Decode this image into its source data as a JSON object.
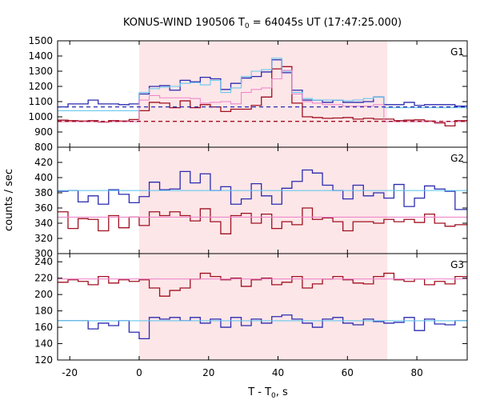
{
  "chart_data": {
    "type": "line",
    "title_parts": {
      "prefix": "KONUS-WIND 190506 T",
      "sub": "0",
      "suffix": " = 64045s UT (17:47:25.000)"
    },
    "xlabel_parts": {
      "prefix": "T - T",
      "sub": "0",
      "suffix": ", s"
    },
    "ylabel": "counts / sec",
    "xlim": [
      -23.5,
      94.5
    ],
    "xticks": [
      -20,
      0,
      20,
      40,
      60,
      80
    ],
    "shaded_interval": [
      0,
      71.5
    ],
    "colors": {
      "shade": "#fde6e8",
      "dark_blue": "#2b2bb0",
      "dark_red": "#a01020",
      "light_blue": "#66c8ee",
      "pink": "#ee88cc"
    },
    "bin_edges": [
      -23.5,
      -20.5,
      -17.6,
      -14.7,
      -11.8,
      -8.8,
      -5.9,
      -2.9,
      0,
      2.9,
      5.9,
      8.8,
      11.8,
      14.7,
      17.6,
      20.5,
      23.5,
      26.4,
      29.4,
      32.3,
      35.2,
      38.2,
      41.1,
      44.0,
      47.0,
      49.9,
      52.8,
      55.8,
      58.7,
      61.6,
      64.6,
      67.5,
      70.5,
      73.4,
      76.3,
      79.3,
      82.2,
      85.1,
      88.1,
      91.0,
      94.5
    ],
    "panels": [
      {
        "label": "G1",
        "ylim": [
          800,
          1500
        ],
        "yticks": [
          800,
          900,
          1000,
          1100,
          1200,
          1300,
          1400,
          1500
        ],
        "series": [
          {
            "color": "dark_blue",
            "values": [
              1065,
              1085,
              1085,
              1110,
              1085,
              1085,
              1080,
              1085,
              1150,
              1200,
              1205,
              1175,
              1240,
              1230,
              1260,
              1250,
              1180,
              1220,
              1255,
              1265,
              1295,
              1375,
              1290,
              1175,
              1110,
              1110,
              1095,
              1110,
              1095,
              1095,
              1100,
              1130,
              1080,
              1080,
              1095,
              1075,
              1080,
              1080,
              1080,
              1070
            ]
          },
          {
            "color": "dark_red",
            "values": [
              978,
              975,
              972,
              975,
              965,
              975,
              972,
              982,
              1040,
              1095,
              1090,
              1060,
              1105,
              1060,
              1080,
              1065,
              1035,
              1050,
              1050,
              1075,
              1130,
              1315,
              1330,
              1090,
              1000,
              995,
              990,
              992,
              995,
              985,
              990,
              985,
              985,
              975,
              978,
              980,
              972,
              960,
              940,
              975
            ]
          },
          {
            "color": "light_blue",
            "stepped": true,
            "values": [
              1040,
              1040,
              1040,
              1040,
              1040,
              1040,
              1040,
              1040,
              1160,
              1185,
              1195,
              1200,
              1220,
              1225,
              1210,
              1240,
              1160,
              1190,
              1265,
              1300,
              1310,
              1385,
              1300,
              1160,
              1120,
              1110,
              1110,
              1110,
              1105,
              1110,
              1120,
              1130,
              1060,
              1060,
              1060,
              1060,
              1060,
              1060,
              1060,
              1060
            ]
          },
          {
            "color": "pink",
            "stepped": true,
            "values": [
              968,
              968,
              968,
              968,
              968,
              968,
              968,
              968,
              1110,
              1140,
              1125,
              1125,
              1125,
              1120,
              1090,
              1095,
              1100,
              1085,
              1160,
              1180,
              1190,
              1250,
              1305,
              1150,
              1100,
              1090,
              1080,
              1080,
              1070,
              1070,
              1070,
              1080,
              968,
              968,
              968,
              968,
              968,
              968,
              968,
              968
            ]
          },
          {
            "color": "dark_blue",
            "dashed": true,
            "x": [
              -23.5,
              94.5
            ],
            "values": [
              1065,
              1065
            ]
          },
          {
            "color": "dark_red",
            "dashed": true,
            "x": [
              -23.5,
              94.5
            ],
            "values": [
              970,
              970
            ]
          }
        ]
      },
      {
        "label": "G2",
        "ylim": [
          300,
          440
        ],
        "yticks": [
          300,
          320,
          340,
          360,
          380,
          400,
          420
        ],
        "series": [
          {
            "color": "dark_blue",
            "values": [
              382,
              383,
              368,
              376,
              365,
              384,
              378,
              367,
              375,
              394,
              384,
              385,
              408,
              393,
              405,
              383,
              388,
              365,
              372,
              392,
              376,
              365,
              386,
              395,
              410,
              406,
              390,
              383,
              372,
              390,
              376,
              380,
              373,
              391,
              362,
              373,
              389,
              385,
              382,
              358
            ]
          },
          {
            "color": "dark_red",
            "values": [
              355,
              333,
              346,
              345,
              330,
              350,
              334,
              348,
              337,
              355,
              350,
              355,
              350,
              343,
              359,
              342,
              326,
              350,
              353,
              340,
              352,
              333,
              342,
              338,
              360,
              345,
              347,
              342,
              330,
              342,
              342,
              340,
              345,
              342,
              345,
              341,
              352,
              340,
              336,
              338
            ]
          },
          {
            "color": "light_blue",
            "x": [
              -23.5,
              94.5
            ],
            "values": [
              383,
              383
            ]
          },
          {
            "color": "pink",
            "x": [
              -23.5,
              94.5
            ],
            "values": [
              348,
              348
            ]
          }
        ]
      },
      {
        "label": "G3",
        "ylim": [
          120,
          250
        ],
        "yticks": [
          120,
          140,
          160,
          180,
          200,
          220,
          240
        ],
        "series": [
          {
            "color": "dark_red",
            "values": [
              215,
              218,
              216,
              212,
              222,
              214,
              218,
              216,
              218,
              208,
              198,
              205,
              208,
              219,
              226,
              222,
              218,
              220,
              210,
              218,
              220,
              212,
              215,
              222,
              208,
              213,
              219,
              222,
              218,
              214,
              213,
              222,
              226,
              218,
              216,
              219,
              212,
              216,
              213,
              222
            ]
          },
          {
            "color": "dark_blue",
            "values": [
              168,
              168,
              168,
              158,
              165,
              162,
              168,
              154,
              146,
              172,
              170,
              172,
              168,
              172,
              165,
              170,
              160,
              172,
              162,
              170,
              165,
              173,
              175,
              170,
              165,
              160,
              170,
              172,
              165,
              163,
              170,
              167,
              165,
              166,
              172,
              156,
              170,
              164,
              163,
              168
            ]
          },
          {
            "color": "pink",
            "x": [
              -23.5,
              94.5
            ],
            "values": [
              219,
              219
            ]
          },
          {
            "color": "light_blue",
            "x": [
              -23.5,
              94.5
            ],
            "values": [
              168,
              168
            ]
          }
        ]
      }
    ]
  }
}
